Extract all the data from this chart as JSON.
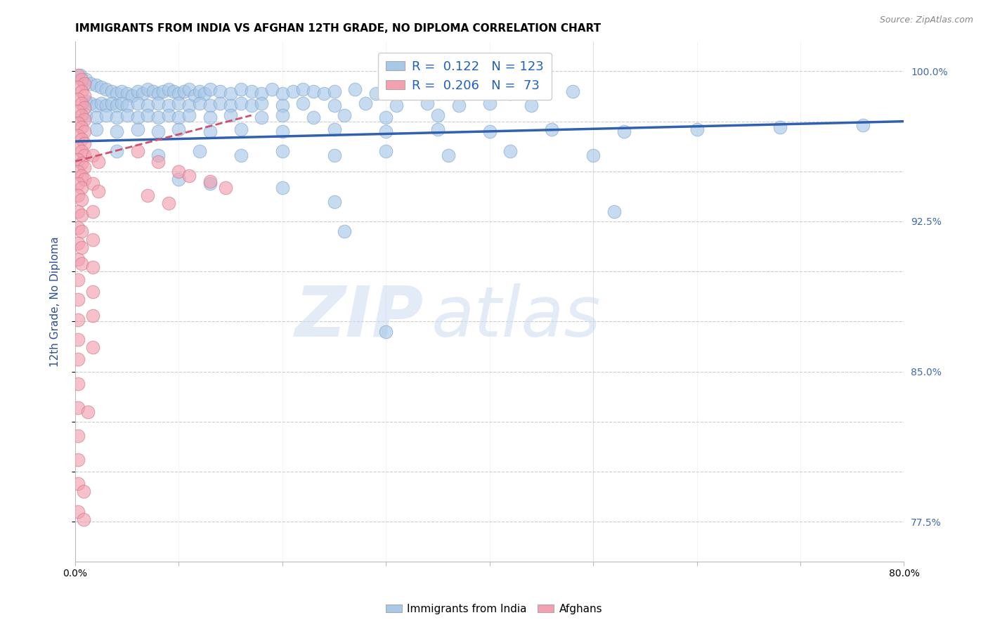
{
  "title": "IMMIGRANTS FROM INDIA VS AFGHAN 12TH GRADE, NO DIPLOMA CORRELATION CHART",
  "source": "Source: ZipAtlas.com",
  "ylabel": "12th Grade, No Diploma",
  "watermark_zip": "ZIP",
  "watermark_atlas": "atlas",
  "xlim": [
    0.0,
    0.8
  ],
  "ylim": [
    0.755,
    1.015
  ],
  "ytick_positions": [
    0.775,
    0.8,
    0.825,
    0.85,
    0.875,
    0.9,
    0.925,
    0.95,
    0.975,
    1.0
  ],
  "ytick_labels_right": [
    "77.5%",
    "",
    "",
    "85.0%",
    "",
    "",
    "92.5%",
    "",
    "",
    "100.0%"
  ],
  "india_R": 0.122,
  "india_N": 123,
  "afghan_R": 0.206,
  "afghan_N": 73,
  "india_color": "#a8c8e8",
  "afghan_color": "#f4a0b0",
  "india_line_color": "#3060b0",
  "afghan_line_color": "#d05070",
  "india_scatter": [
    [
      0.005,
      0.998
    ],
    [
      0.01,
      0.996
    ],
    [
      0.015,
      0.994
    ],
    [
      0.02,
      0.993
    ],
    [
      0.025,
      0.992
    ],
    [
      0.03,
      0.991
    ],
    [
      0.035,
      0.99
    ],
    [
      0.04,
      0.989
    ],
    [
      0.045,
      0.99
    ],
    [
      0.05,
      0.989
    ],
    [
      0.055,
      0.988
    ],
    [
      0.06,
      0.99
    ],
    [
      0.065,
      0.989
    ],
    [
      0.07,
      0.991
    ],
    [
      0.075,
      0.99
    ],
    [
      0.08,
      0.989
    ],
    [
      0.085,
      0.99
    ],
    [
      0.09,
      0.991
    ],
    [
      0.095,
      0.99
    ],
    [
      0.1,
      0.989
    ],
    [
      0.105,
      0.99
    ],
    [
      0.11,
      0.991
    ],
    [
      0.115,
      0.988
    ],
    [
      0.12,
      0.99
    ],
    [
      0.125,
      0.989
    ],
    [
      0.13,
      0.991
    ],
    [
      0.14,
      0.99
    ],
    [
      0.15,
      0.989
    ],
    [
      0.16,
      0.991
    ],
    [
      0.17,
      0.99
    ],
    [
      0.18,
      0.989
    ],
    [
      0.19,
      0.991
    ],
    [
      0.2,
      0.989
    ],
    [
      0.21,
      0.99
    ],
    [
      0.22,
      0.991
    ],
    [
      0.23,
      0.99
    ],
    [
      0.24,
      0.989
    ],
    [
      0.25,
      0.99
    ],
    [
      0.27,
      0.991
    ],
    [
      0.29,
      0.989
    ],
    [
      0.31,
      0.99
    ],
    [
      0.33,
      0.991
    ],
    [
      0.35,
      0.989
    ],
    [
      0.37,
      0.991
    ],
    [
      0.39,
      0.99
    ],
    [
      0.42,
      0.989
    ],
    [
      0.45,
      0.991
    ],
    [
      0.48,
      0.99
    ],
    [
      0.01,
      0.985
    ],
    [
      0.015,
      0.984
    ],
    [
      0.02,
      0.983
    ],
    [
      0.025,
      0.984
    ],
    [
      0.03,
      0.983
    ],
    [
      0.035,
      0.984
    ],
    [
      0.04,
      0.983
    ],
    [
      0.045,
      0.984
    ],
    [
      0.05,
      0.983
    ],
    [
      0.06,
      0.984
    ],
    [
      0.07,
      0.983
    ],
    [
      0.08,
      0.984
    ],
    [
      0.09,
      0.983
    ],
    [
      0.1,
      0.984
    ],
    [
      0.11,
      0.983
    ],
    [
      0.12,
      0.984
    ],
    [
      0.13,
      0.983
    ],
    [
      0.14,
      0.984
    ],
    [
      0.15,
      0.983
    ],
    [
      0.16,
      0.984
    ],
    [
      0.17,
      0.983
    ],
    [
      0.18,
      0.984
    ],
    [
      0.2,
      0.983
    ],
    [
      0.22,
      0.984
    ],
    [
      0.25,
      0.983
    ],
    [
      0.28,
      0.984
    ],
    [
      0.31,
      0.983
    ],
    [
      0.34,
      0.984
    ],
    [
      0.37,
      0.983
    ],
    [
      0.4,
      0.984
    ],
    [
      0.44,
      0.983
    ],
    [
      0.01,
      0.978
    ],
    [
      0.02,
      0.977
    ],
    [
      0.03,
      0.978
    ],
    [
      0.04,
      0.977
    ],
    [
      0.05,
      0.978
    ],
    [
      0.06,
      0.977
    ],
    [
      0.07,
      0.978
    ],
    [
      0.08,
      0.977
    ],
    [
      0.09,
      0.978
    ],
    [
      0.1,
      0.977
    ],
    [
      0.11,
      0.978
    ],
    [
      0.13,
      0.977
    ],
    [
      0.15,
      0.978
    ],
    [
      0.18,
      0.977
    ],
    [
      0.2,
      0.978
    ],
    [
      0.23,
      0.977
    ],
    [
      0.26,
      0.978
    ],
    [
      0.3,
      0.977
    ],
    [
      0.35,
      0.978
    ],
    [
      0.02,
      0.971
    ],
    [
      0.04,
      0.97
    ],
    [
      0.06,
      0.971
    ],
    [
      0.08,
      0.97
    ],
    [
      0.1,
      0.971
    ],
    [
      0.13,
      0.97
    ],
    [
      0.16,
      0.971
    ],
    [
      0.2,
      0.97
    ],
    [
      0.25,
      0.971
    ],
    [
      0.3,
      0.97
    ],
    [
      0.35,
      0.971
    ],
    [
      0.4,
      0.97
    ],
    [
      0.46,
      0.971
    ],
    [
      0.53,
      0.97
    ],
    [
      0.6,
      0.971
    ],
    [
      0.68,
      0.972
    ],
    [
      0.76,
      0.973
    ],
    [
      0.04,
      0.96
    ],
    [
      0.08,
      0.958
    ],
    [
      0.12,
      0.96
    ],
    [
      0.16,
      0.958
    ],
    [
      0.2,
      0.96
    ],
    [
      0.25,
      0.958
    ],
    [
      0.3,
      0.96
    ],
    [
      0.36,
      0.958
    ],
    [
      0.42,
      0.96
    ],
    [
      0.5,
      0.958
    ],
    [
      0.52,
      0.93
    ],
    [
      0.1,
      0.946
    ],
    [
      0.13,
      0.944
    ],
    [
      0.2,
      0.942
    ],
    [
      0.25,
      0.935
    ],
    [
      0.26,
      0.92
    ],
    [
      0.3,
      0.87
    ]
  ],
  "afghan_scatter": [
    [
      0.003,
      0.998
    ],
    [
      0.006,
      0.996
    ],
    [
      0.009,
      0.994
    ],
    [
      0.003,
      0.992
    ],
    [
      0.006,
      0.99
    ],
    [
      0.009,
      0.988
    ],
    [
      0.003,
      0.986
    ],
    [
      0.006,
      0.984
    ],
    [
      0.009,
      0.982
    ],
    [
      0.003,
      0.98
    ],
    [
      0.006,
      0.978
    ],
    [
      0.009,
      0.976
    ],
    [
      0.003,
      0.974
    ],
    [
      0.006,
      0.972
    ],
    [
      0.009,
      0.97
    ],
    [
      0.003,
      0.968
    ],
    [
      0.006,
      0.966
    ],
    [
      0.009,
      0.964
    ],
    [
      0.003,
      0.962
    ],
    [
      0.006,
      0.96
    ],
    [
      0.009,
      0.958
    ],
    [
      0.003,
      0.956
    ],
    [
      0.006,
      0.954
    ],
    [
      0.009,
      0.952
    ],
    [
      0.003,
      0.95
    ],
    [
      0.006,
      0.948
    ],
    [
      0.009,
      0.946
    ],
    [
      0.003,
      0.944
    ],
    [
      0.006,
      0.942
    ],
    [
      0.003,
      0.938
    ],
    [
      0.006,
      0.936
    ],
    [
      0.003,
      0.93
    ],
    [
      0.006,
      0.928
    ],
    [
      0.003,
      0.922
    ],
    [
      0.006,
      0.92
    ],
    [
      0.003,
      0.914
    ],
    [
      0.006,
      0.912
    ],
    [
      0.003,
      0.906
    ],
    [
      0.006,
      0.904
    ],
    [
      0.003,
      0.896
    ],
    [
      0.003,
      0.886
    ],
    [
      0.003,
      0.876
    ],
    [
      0.003,
      0.866
    ],
    [
      0.003,
      0.856
    ],
    [
      0.003,
      0.844
    ],
    [
      0.003,
      0.832
    ],
    [
      0.012,
      0.83
    ],
    [
      0.003,
      0.818
    ],
    [
      0.003,
      0.806
    ],
    [
      0.003,
      0.794
    ],
    [
      0.008,
      0.79
    ],
    [
      0.003,
      0.78
    ],
    [
      0.008,
      0.776
    ],
    [
      0.06,
      0.96
    ],
    [
      0.08,
      0.955
    ],
    [
      0.1,
      0.95
    ],
    [
      0.11,
      0.948
    ],
    [
      0.13,
      0.945
    ],
    [
      0.145,
      0.942
    ],
    [
      0.07,
      0.938
    ],
    [
      0.09,
      0.934
    ],
    [
      0.017,
      0.958
    ],
    [
      0.022,
      0.955
    ],
    [
      0.017,
      0.944
    ],
    [
      0.022,
      0.94
    ],
    [
      0.017,
      0.93
    ],
    [
      0.017,
      0.916
    ],
    [
      0.017,
      0.902
    ],
    [
      0.017,
      0.89
    ],
    [
      0.017,
      0.878
    ],
    [
      0.017,
      0.862
    ]
  ],
  "india_line_x": [
    0.0,
    0.8
  ],
  "india_line_y": [
    0.965,
    0.975
  ],
  "afghan_line_x": [
    0.0,
    0.17
  ],
  "afghan_line_y": [
    0.955,
    0.978
  ],
  "grid_color": "#cccccc",
  "background_color": "#ffffff",
  "title_fontsize": 11,
  "ylabel_color": "#2f4f8f",
  "tick_label_color_right": "#4169b0",
  "legend_box_india_color": "#a8c8e8",
  "legend_box_afghan_color": "#f4a0b0"
}
